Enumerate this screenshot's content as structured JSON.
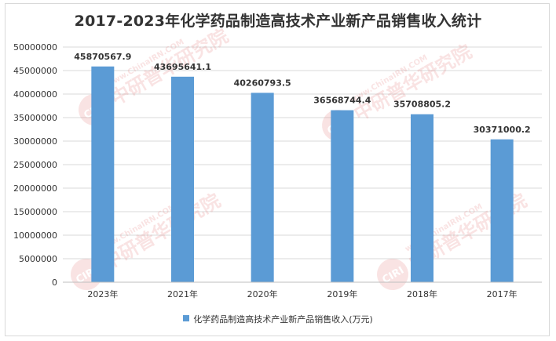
{
  "chart_data": {
    "type": "bar",
    "title": "2017-2023年化学药品制造高技术产业新产品销售收入统计",
    "xlabel": "",
    "ylabel": "",
    "categories": [
      "2023年",
      "2021年",
      "2020年",
      "2019年",
      "2018年",
      "2017年"
    ],
    "series": [
      {
        "name": "化学药品制造高技术产业新产品销售收入(万元)",
        "values": [
          45870567.9,
          43695641.1,
          40260793.5,
          36568744.4,
          35708805.2,
          30371000.2
        ],
        "data_labels": [
          "45870567.9",
          "43695641.1",
          "40260793.5",
          "36568744.4",
          "35708805.2",
          "30371000.2"
        ]
      }
    ],
    "ylim": [
      0,
      50000000
    ],
    "yticks": [
      0,
      5000000,
      10000000,
      15000000,
      20000000,
      25000000,
      30000000,
      35000000,
      40000000,
      45000000,
      50000000
    ],
    "ytick_labels": [
      "0",
      "5000000",
      "10000000",
      "15000000",
      "20000000",
      "25000000",
      "30000000",
      "35000000",
      "40000000",
      "45000000",
      "50000000"
    ],
    "grid": "horizontal",
    "legend_position": "bottom",
    "bar_color": "#5b9bd5"
  },
  "watermark": {
    "logo": "CIRI",
    "text": "中研普华研究院",
    "url": "www.ChinaIRN.COM"
  }
}
